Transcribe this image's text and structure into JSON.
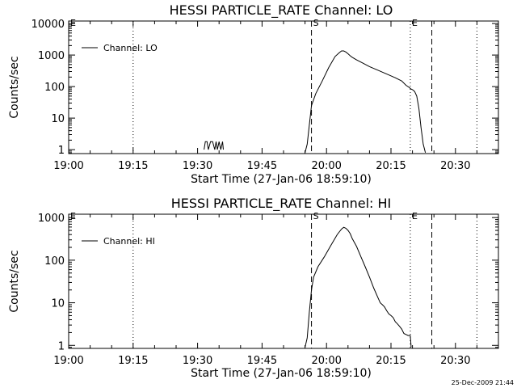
{
  "footer": {
    "timestamp": "25-Dec-2009 21:44"
  },
  "chart_data": [
    {
      "type": "line",
      "title": "HESSI PARTICLE_RATE Channel: LO",
      "xlabel": "Start Time (27-Jan-06 18:59:10)",
      "ylabel": "Counts/sec",
      "yscale": "log",
      "xlim": [
        0,
        100
      ],
      "ylim": [
        0.75,
        12000
      ],
      "x_ticks": [
        {
          "t": 0,
          "label": "19:00"
        },
        {
          "t": 15,
          "label": "19:15"
        },
        {
          "t": 30,
          "label": "19:30"
        },
        {
          "t": 45,
          "label": "19:45"
        },
        {
          "t": 60,
          "label": "20:00"
        },
        {
          "t": 75,
          "label": "20:15"
        },
        {
          "t": 90,
          "label": "20:30"
        }
      ],
      "y_ticks": [
        {
          "v": 1,
          "label": "1"
        },
        {
          "v": 10,
          "label": "10"
        },
        {
          "v": 100,
          "label": "100"
        },
        {
          "v": 1000,
          "label": "1000"
        },
        {
          "v": 10000,
          "label": "10000"
        }
      ],
      "legend": {
        "label": "Channel: LO",
        "position": "top-left"
      },
      "markers": [
        {
          "t": 0,
          "style": "dotted",
          "label": "E"
        },
        {
          "t": 15,
          "style": "dotted",
          "label": ""
        },
        {
          "t": 56.5,
          "style": "dashed",
          "label": "S"
        },
        {
          "t": 79.5,
          "style": "dotted",
          "label": "E"
        },
        {
          "t": 84.5,
          "style": "dashed",
          "label": ""
        },
        {
          "t": 95,
          "style": "dotted",
          "label": ""
        }
      ],
      "series": [
        {
          "name": "Channel: LO",
          "x": [
            31.5,
            31.8,
            32.2,
            32.5,
            33.0,
            33.5,
            34.0,
            34.3,
            34.6,
            35.0,
            35.4,
            35.8,
            36.0,
            36.1,
            55.0,
            55.5,
            56.0,
            56.5,
            57.5,
            59.0,
            60.5,
            62.0,
            63.0,
            63.5,
            64.0,
            64.5,
            65.0,
            65.5,
            66.0,
            67.0,
            68.5,
            70.0,
            72.0,
            74.0,
            76.0,
            77.5,
            78.5,
            79.2,
            79.6,
            80.0,
            80.5,
            81.0,
            81.5,
            82.0,
            82.5,
            83.0
          ],
          "y": [
            1,
            1.8,
            1.8,
            1,
            1.8,
            1.8,
            1,
            1.8,
            1,
            1.8,
            1,
            1.8,
            1,
            null,
            0.8,
            1.5,
            6,
            25,
            60,
            150,
            400,
            900,
            1200,
            1350,
            1350,
            1250,
            1100,
            950,
            850,
            700,
            550,
            430,
            330,
            250,
            190,
            150,
            110,
            95,
            85,
            80,
            70,
            50,
            20,
            5,
            1.5,
            0.8
          ]
        }
      ]
    },
    {
      "type": "line",
      "title": "HESSI PARTICLE_RATE Channel: HI",
      "xlabel": "Start Time (27-Jan-06 18:59:10)",
      "ylabel": "Counts/sec",
      "yscale": "log",
      "xlim": [
        0,
        100
      ],
      "ylim": [
        0.85,
        1200
      ],
      "x_ticks": [
        {
          "t": 0,
          "label": "19:00"
        },
        {
          "t": 15,
          "label": "19:15"
        },
        {
          "t": 30,
          "label": "19:30"
        },
        {
          "t": 45,
          "label": "19:45"
        },
        {
          "t": 60,
          "label": "20:00"
        },
        {
          "t": 75,
          "label": "20:15"
        },
        {
          "t": 90,
          "label": "20:30"
        }
      ],
      "y_ticks": [
        {
          "v": 1,
          "label": "1"
        },
        {
          "v": 10,
          "label": "10"
        },
        {
          "v": 100,
          "label": "100"
        },
        {
          "v": 1000,
          "label": "1000"
        }
      ],
      "legend": {
        "label": "Channel: HI",
        "position": "top-left"
      },
      "markers": [
        {
          "t": 0,
          "style": "dotted",
          "label": "E"
        },
        {
          "t": 15,
          "style": "dotted",
          "label": ""
        },
        {
          "t": 56.5,
          "style": "dashed",
          "label": "S"
        },
        {
          "t": 79.5,
          "style": "dotted",
          "label": "E"
        },
        {
          "t": 84.5,
          "style": "dashed",
          "label": ""
        },
        {
          "t": 95,
          "style": "dotted",
          "label": ""
        }
      ],
      "series": [
        {
          "name": "Channel: HI",
          "x": [
            55.0,
            55.5,
            56.0,
            56.5,
            57.0,
            58.0,
            59.5,
            61.0,
            62.5,
            63.5,
            64.0,
            64.5,
            65.0,
            65.5,
            66.0,
            67.0,
            68.0,
            69.0,
            70.0,
            71.0,
            72.0,
            72.5,
            73.0,
            73.5,
            74.0,
            74.5,
            75.0,
            75.5,
            76.0,
            76.5,
            77.0,
            77.5,
            78.0,
            78.5,
            79.0,
            79.5,
            79.7
          ],
          "y": [
            0.9,
            1.5,
            6,
            20,
            40,
            70,
            120,
            220,
            400,
            540,
            590,
            560,
            500,
            420,
            320,
            210,
            120,
            70,
            40,
            22,
            13,
            10,
            9,
            8,
            6.5,
            5.5,
            5,
            4.5,
            3.6,
            3.2,
            2.8,
            2.4,
            1.9,
            1.8,
            1.7,
            1.7,
            0.9
          ]
        }
      ]
    }
  ]
}
